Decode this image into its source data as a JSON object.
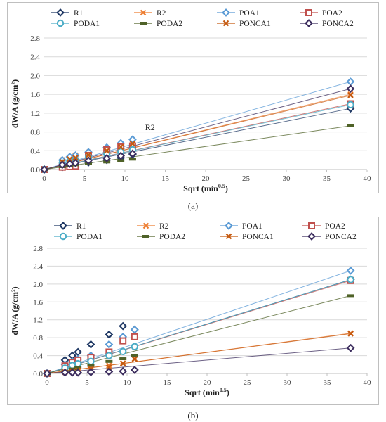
{
  "figure": {
    "caption_a": "(a)",
    "caption_b": "(b)"
  },
  "chart_data": [
    {
      "type": "scatter",
      "panel": "a",
      "xlabel": "Sqrt (min^0.5)",
      "ylabel": "dW/A (g/cm²)",
      "xlim": [
        0,
        40
      ],
      "ylim": [
        0,
        2.8
      ],
      "xticks": [
        0,
        5,
        10,
        15,
        20,
        25,
        30,
        35,
        40
      ],
      "yticks": [
        0.0,
        0.4,
        0.8,
        1.2,
        1.6,
        2.0,
        2.4,
        2.8
      ],
      "grid": "horizontal",
      "legend": "top",
      "annotations": [
        {
          "text": "R2",
          "x": 12.5,
          "y": 0.84
        }
      ],
      "x": [
        0,
        2.24,
        3.16,
        3.87,
        5.48,
        7.75,
        9.49,
        10.95,
        37.95
      ],
      "series": [
        {
          "name": "R1",
          "color": "#1f3864",
          "marker": "diamond",
          "values": [
            0,
            0.05,
            0.08,
            0.1,
            0.15,
            0.2,
            0.25,
            0.32,
            1.3
          ]
        },
        {
          "name": "R2",
          "color": "#ed7d31",
          "marker": "x",
          "values": [
            0,
            0.2,
            0.25,
            0.3,
            0.36,
            0.45,
            0.52,
            0.58,
            1.6
          ]
        },
        {
          "name": "POA1",
          "color": "#5b9bd5",
          "marker": "diamond",
          "values": [
            0,
            0.2,
            0.27,
            0.3,
            0.37,
            0.47,
            0.56,
            0.64,
            1.87
          ]
        },
        {
          "name": "POA2",
          "color": "#c0504d",
          "marker": "square",
          "values": [
            0,
            0.05,
            0.06,
            0.07,
            0.3,
            0.42,
            0.48,
            0.5,
            1.4
          ]
        },
        {
          "name": "PODA1",
          "color": "#4bacc6",
          "marker": "circle",
          "values": [
            0,
            0.14,
            0.18,
            0.2,
            0.26,
            0.33,
            0.38,
            0.42,
            1.38
          ]
        },
        {
          "name": "PODA2",
          "color": "#4f6228",
          "marker": "dash",
          "values": [
            0,
            0.06,
            0.09,
            0.1,
            0.12,
            0.16,
            0.19,
            0.22,
            0.93
          ]
        },
        {
          "name": "PONCA1",
          "color": "#c55a11",
          "marker": "x",
          "values": [
            0,
            0.16,
            0.22,
            0.25,
            0.31,
            0.4,
            0.48,
            0.55,
            1.58
          ]
        },
        {
          "name": "PONCA2",
          "color": "#3c2d5e",
          "marker": "diamond",
          "values": [
            0,
            0.1,
            0.12,
            0.14,
            0.19,
            0.24,
            0.29,
            0.34,
            1.72
          ]
        }
      ]
    },
    {
      "type": "scatter",
      "panel": "b",
      "xlabel": "Sqrt (min^0.5)",
      "ylabel": "dW/A (g/cm²)",
      "xlim": [
        0,
        40
      ],
      "ylim": [
        0,
        2.8
      ],
      "xticks": [
        0,
        5,
        10,
        15,
        20,
        25,
        30,
        35,
        40
      ],
      "yticks": [
        0.0,
        0.4,
        0.8,
        1.2,
        1.6,
        2.0,
        2.4,
        2.8
      ],
      "grid": "horizontal",
      "legend": "top",
      "x": [
        0,
        2.24,
        3.16,
        3.87,
        5.48,
        7.75,
        9.49,
        10.95,
        37.95
      ],
      "series": [
        {
          "name": "R1",
          "color": "#1f3864",
          "marker": "diamond",
          "values": [
            0,
            0.3,
            0.4,
            0.48,
            0.65,
            0.87,
            1.06,
            0.98,
            2.1
          ]
        },
        {
          "name": "R2",
          "color": "#ed7d31",
          "marker": "x",
          "values": [
            0,
            0.08,
            0.1,
            0.12,
            0.15,
            0.18,
            0.23,
            0.33,
            0.9
          ]
        },
        {
          "name": "POA1",
          "color": "#5b9bd5",
          "marker": "diamond",
          "values": [
            0,
            0.2,
            0.27,
            0.32,
            0.4,
            0.65,
            0.82,
            0.98,
            2.3
          ]
        },
        {
          "name": "POA2",
          "color": "#c0504d",
          "marker": "square",
          "values": [
            0,
            0.17,
            0.25,
            0.3,
            0.36,
            0.48,
            0.73,
            0.82,
            2.08
          ]
        },
        {
          "name": "PODA1",
          "color": "#4bacc6",
          "marker": "circle",
          "values": [
            0,
            0.12,
            0.18,
            0.22,
            0.27,
            0.4,
            0.49,
            0.6,
            2.1
          ]
        },
        {
          "name": "PODA2",
          "color": "#4f6228",
          "marker": "dash",
          "values": [
            0,
            0.05,
            0.1,
            0.13,
            0.18,
            0.27,
            0.33,
            0.4,
            1.74
          ]
        },
        {
          "name": "PONCA1",
          "color": "#c55a11",
          "marker": "x",
          "values": [
            0,
            0.03,
            0.05,
            0.07,
            0.1,
            0.14,
            0.22,
            0.32,
            0.89
          ]
        },
        {
          "name": "PONCA2",
          "color": "#3c2d5e",
          "marker": "diamond",
          "values": [
            0,
            0.02,
            0.02,
            0.02,
            0.03,
            0.04,
            0.05,
            0.08,
            0.57
          ]
        }
      ]
    }
  ]
}
